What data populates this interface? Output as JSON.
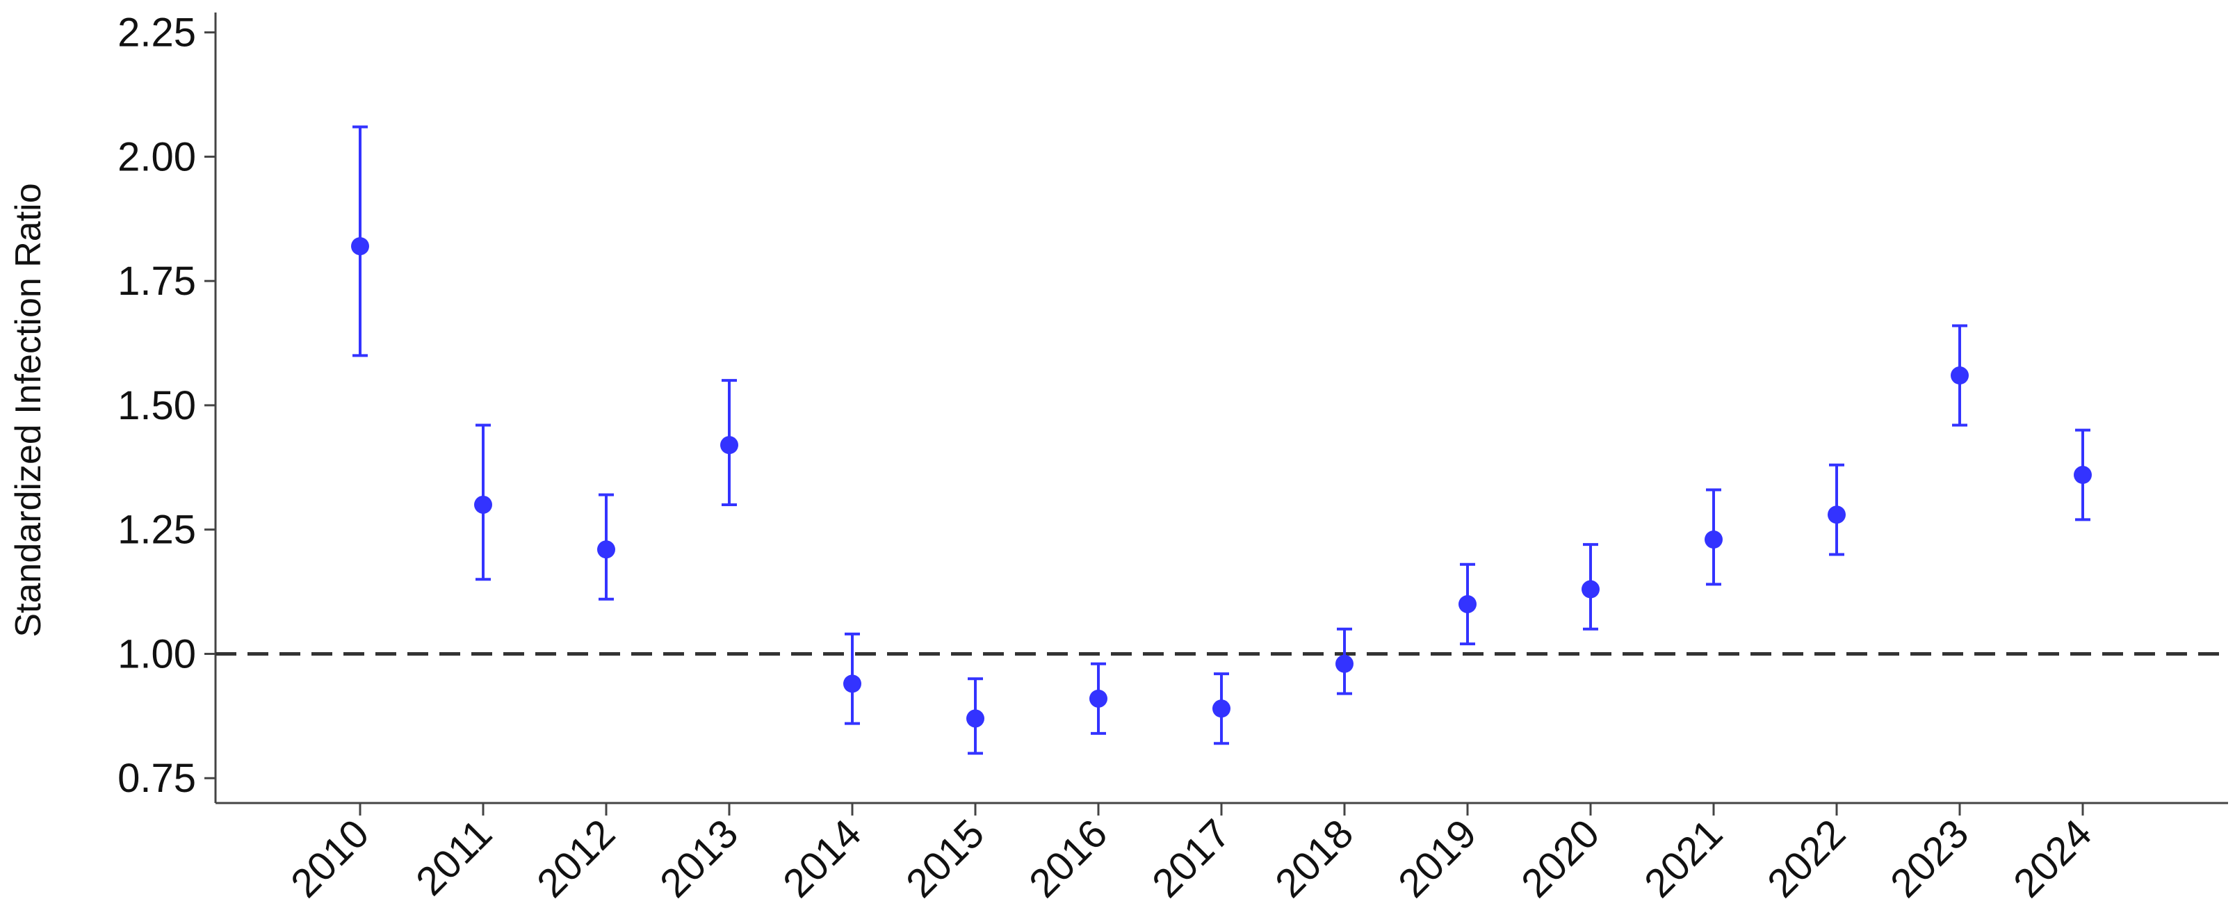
{
  "chart_data": {
    "type": "scatter",
    "title": "",
    "xlabel": "",
    "ylabel": "Standardized Infection Ratio",
    "categories": [
      "2010",
      "2011",
      "2012",
      "2013",
      "2014",
      "2015",
      "2016",
      "2017",
      "2018",
      "2019",
      "2020",
      "2021",
      "2022",
      "2023",
      "2024"
    ],
    "series": [
      {
        "values": [
          1.82,
          1.3,
          1.21,
          1.42,
          0.94,
          0.87,
          0.91,
          0.89,
          0.98,
          1.1,
          1.13,
          1.23,
          1.28,
          1.56,
          1.36
        ],
        "lower": [
          1.6,
          1.15,
          1.11,
          1.3,
          0.86,
          0.8,
          0.84,
          0.82,
          0.92,
          1.02,
          1.05,
          1.14,
          1.2,
          1.46,
          1.27
        ],
        "upper": [
          2.06,
          1.46,
          1.32,
          1.55,
          1.04,
          0.95,
          0.98,
          0.96,
          1.05,
          1.18,
          1.22,
          1.33,
          1.38,
          1.66,
          1.45
        ]
      }
    ],
    "reference_line": 1.0,
    "ylim": [
      0.7,
      2.29
    ],
    "yticks": [
      "0.75",
      "1.00",
      "1.25",
      "1.50",
      "1.75",
      "2.00",
      "2.25"
    ],
    "grid": false,
    "colors": {
      "point": "#3333ff",
      "reference": "#333333",
      "axis": "#444444"
    }
  }
}
